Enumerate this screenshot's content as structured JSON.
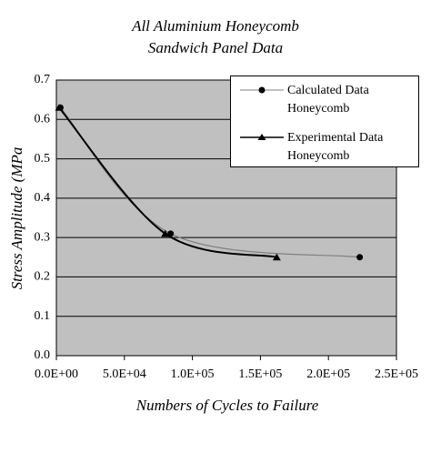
{
  "chart_data": {
    "type": "line",
    "title": [
      "All Aluminium Honeycomb",
      "Sandwich Panel Data"
    ],
    "x_label": "Numbers of Cycles to Failure",
    "y_label": "Stress Amplitude (MPa",
    "series": [
      {
        "name": "Calculated Data Honeycomb",
        "color": "#808080",
        "marker": "circle",
        "x": [
          3000,
          84000,
          223000
        ],
        "values": [
          0.63,
          0.31,
          0.25
        ]
      },
      {
        "name": "Experimental Data Honeycomb",
        "color": "#000000",
        "marker": "triangle",
        "x": [
          2000,
          80000,
          162000
        ],
        "values": [
          0.63,
          0.31,
          0.25
        ]
      }
    ],
    "xlim": [
      0,
      250000
    ],
    "xticks": [
      {
        "value": 0,
        "label": "0.0E+00"
      },
      {
        "value": 50000,
        "label": "5.0E+04"
      },
      {
        "value": 100000,
        "label": "1.0E+05"
      },
      {
        "value": 150000,
        "label": "1.5E+05"
      },
      {
        "value": 200000,
        "label": "2.0E+05"
      },
      {
        "value": 250000,
        "label": "2.5E+05"
      }
    ],
    "ylim": [
      0,
      0.7
    ],
    "yticks": [
      {
        "value": 0,
        "label": "0.0"
      },
      0.1,
      0.2,
      0.3,
      0.4,
      0.5,
      0.6,
      0.7
    ],
    "grid": true
  }
}
